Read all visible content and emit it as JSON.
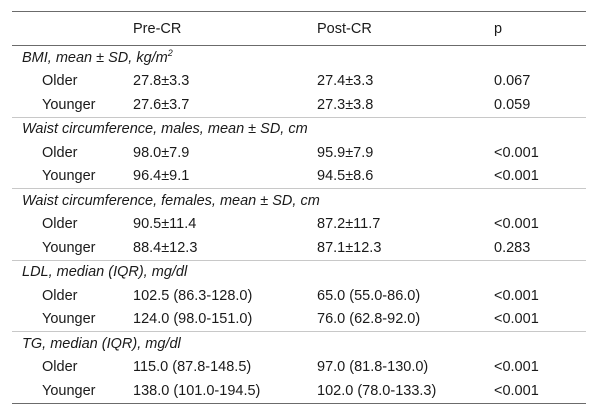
{
  "header": {
    "col0": "",
    "col1": "Pre-CR",
    "col2": "Post-CR",
    "col3": "p"
  },
  "groups": [
    {
      "title": "BMI, mean ± SD, kg/m",
      "title_sup": "2",
      "rows": [
        {
          "label": "Older",
          "pre": "27.8±3.3",
          "post": "27.4±3.3",
          "p": "0.067"
        },
        {
          "label": "Younger",
          "pre": "27.6±3.7",
          "post": "27.3±3.8",
          "p": "0.059"
        }
      ]
    },
    {
      "title": "Waist circumference, males, mean ± SD, cm",
      "rows": [
        {
          "label": "Older",
          "pre": "98.0±7.9",
          "post": "95.9±7.9",
          "p": "<0.001"
        },
        {
          "label": "Younger",
          "pre": "96.4±9.1",
          "post": "94.5±8.6",
          "p": "<0.001"
        }
      ]
    },
    {
      "title": "Waist circumference, females, mean ± SD, cm",
      "rows": [
        {
          "label": "Older",
          "pre": "90.5±11.4",
          "post": "87.2±11.7",
          "p": "<0.001"
        },
        {
          "label": "Younger",
          "pre": "88.4±12.3",
          "post": "87.1±12.3",
          "p": "0.283"
        }
      ]
    },
    {
      "title": "LDL, median (IQR), mg/dl",
      "rows": [
        {
          "label": "Older",
          "pre": "102.5 (86.3-128.0)",
          "post": "65.0 (55.0-86.0)",
          "p": "<0.001"
        },
        {
          "label": "Younger",
          "pre": "124.0 (98.0-151.0)",
          "post": "76.0 (62.8-92.0)",
          "p": "<0.001"
        }
      ]
    },
    {
      "title": "TG, median (IQR), mg/dl",
      "rows": [
        {
          "label": "Older",
          "pre": "115.0 (87.8-148.5)",
          "post": "97.0 (81.8-130.0)",
          "p": "<0.001"
        },
        {
          "label": "Younger",
          "pre": "138.0 (101.0-194.5)",
          "post": "102.0 (78.0-133.3)",
          "p": "<0.001"
        }
      ]
    }
  ]
}
